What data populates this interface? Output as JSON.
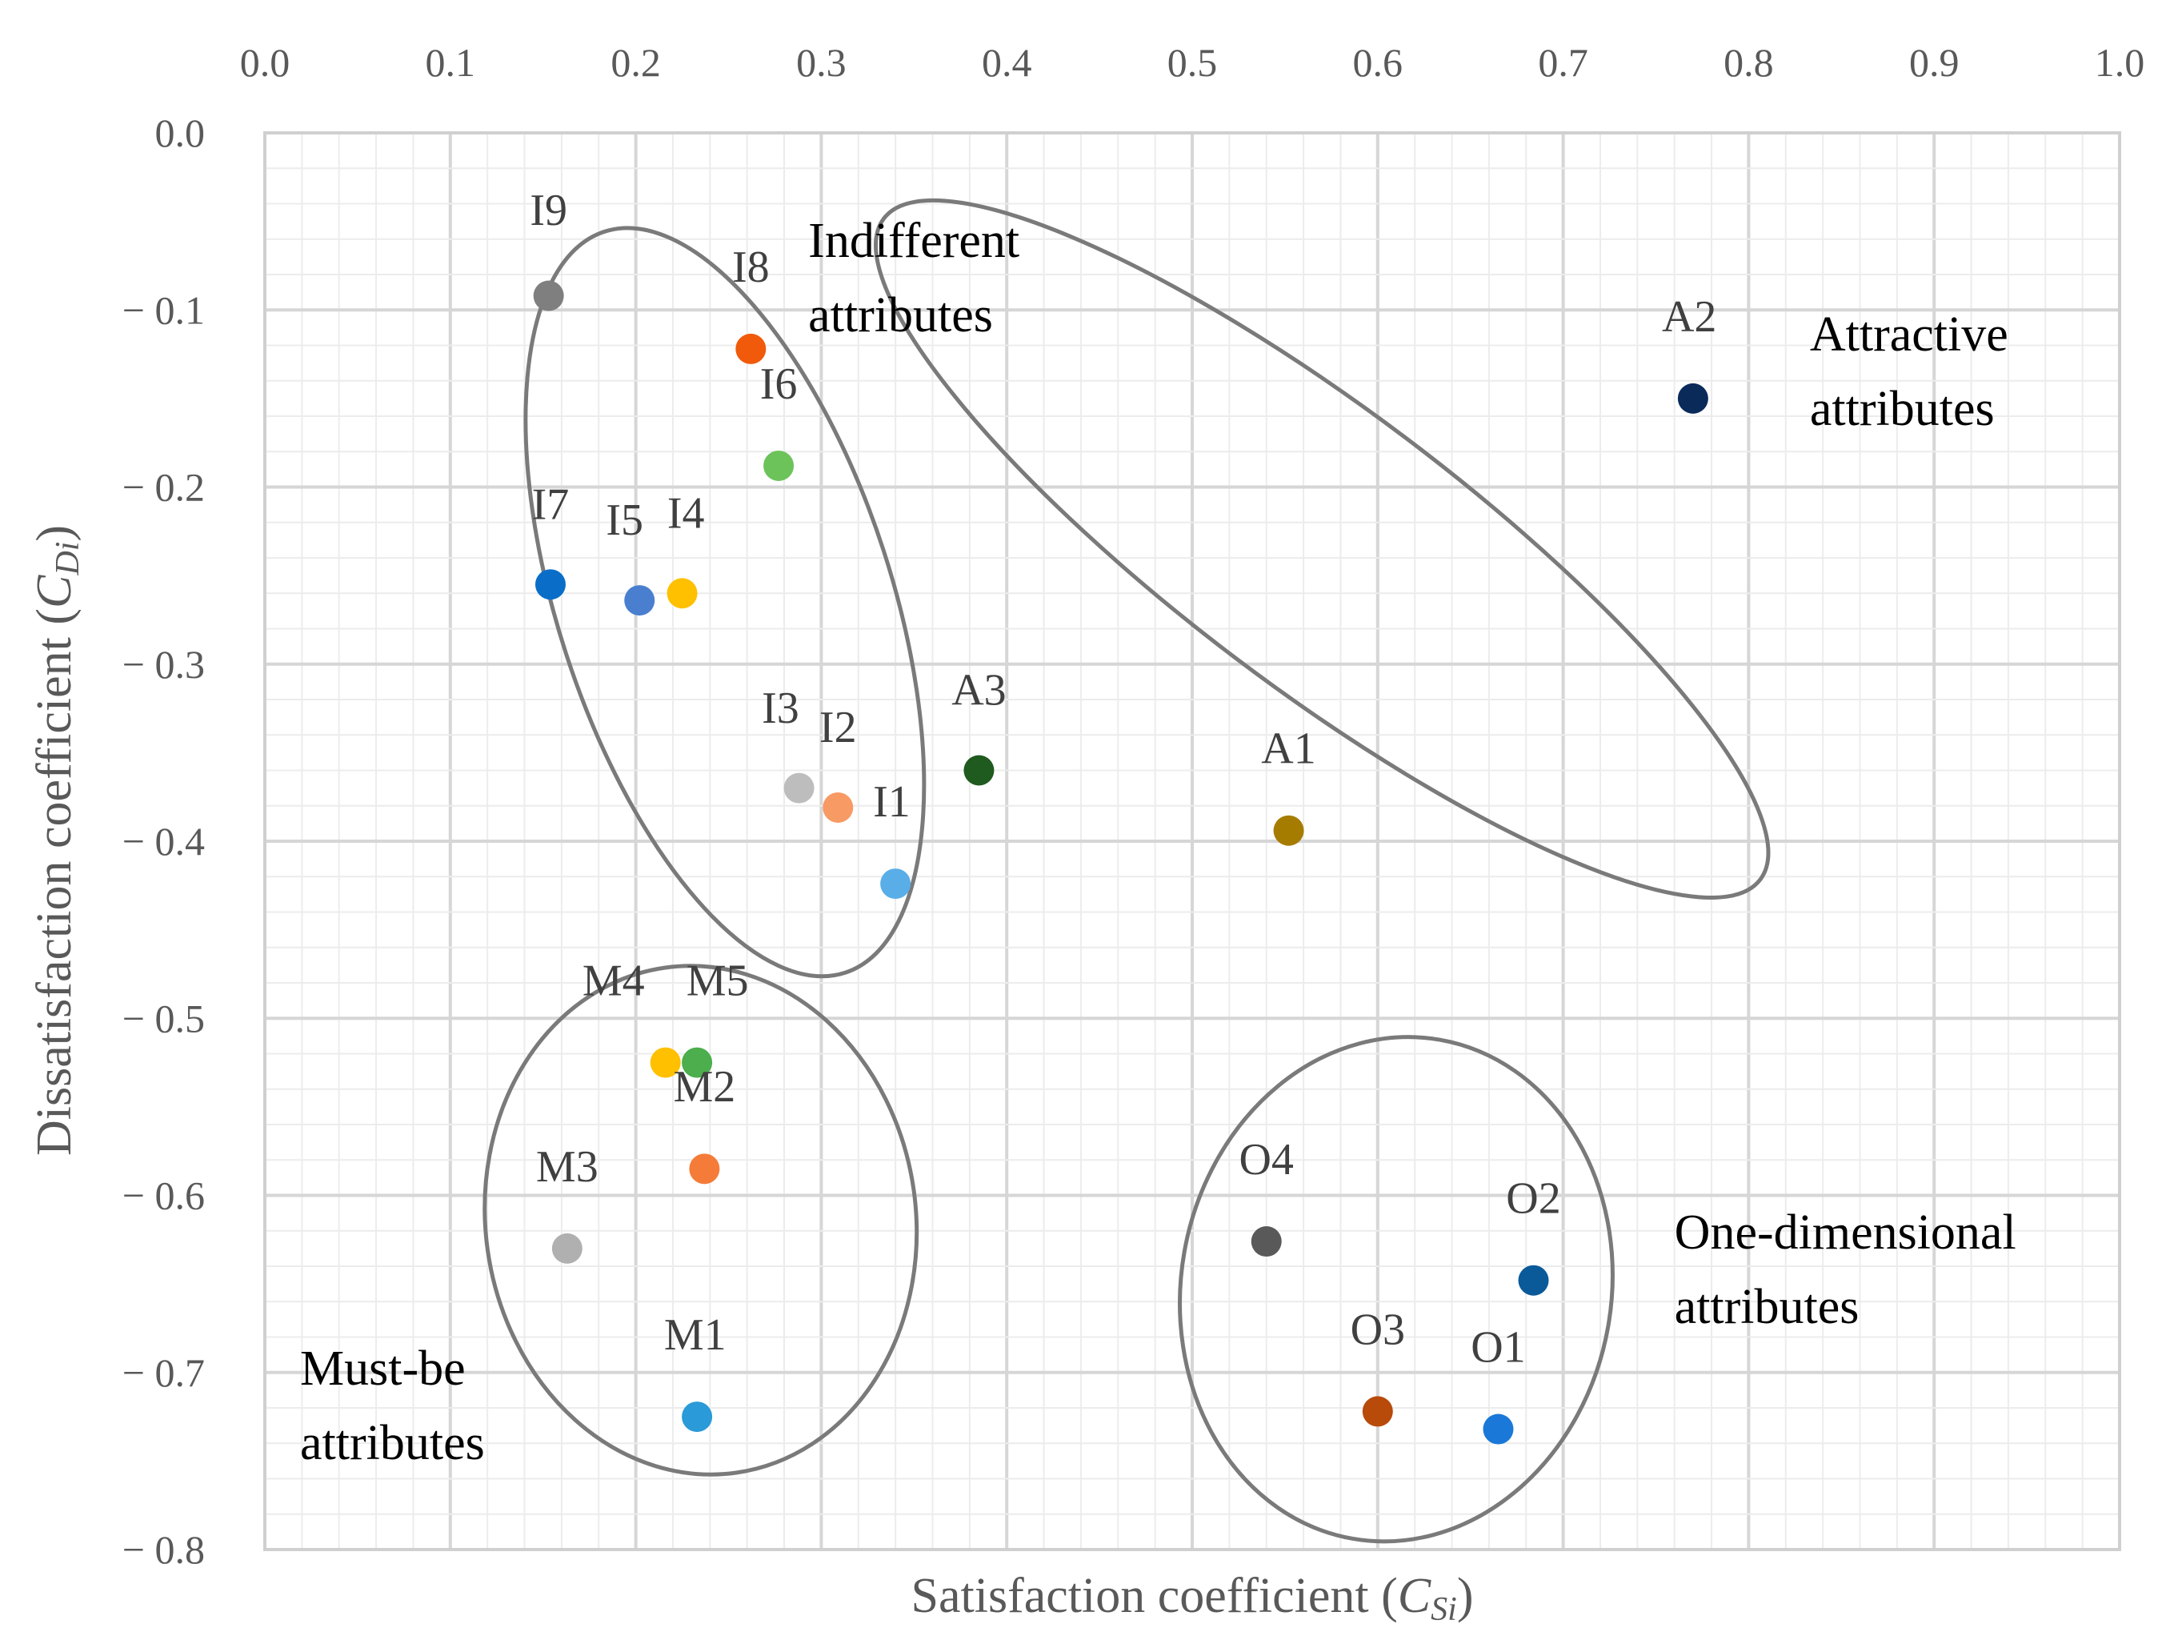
{
  "chart_data": {
    "type": "scatter",
    "title": "",
    "xlabel": "Satisfaction coefficient",
    "xlabel_symbol": "C",
    "xlabel_sub": "Si",
    "ylabel": "Dissatisfaction coefficient",
    "ylabel_symbol": "C",
    "ylabel_sub": "Di",
    "xlim": [
      0.0,
      1.0
    ],
    "ylim": [
      -0.8,
      0.0
    ],
    "x_axis_position": "top",
    "grid": true,
    "x_ticks": [
      "0.0",
      "0.1",
      "0.2",
      "0.3",
      "0.4",
      "0.5",
      "0.6",
      "0.7",
      "0.8",
      "0.9",
      "1.0"
    ],
    "y_ticks": [
      "0.0",
      "− 0.1",
      "− 0.2",
      "− 0.3",
      "− 0.4",
      "− 0.5",
      "− 0.6",
      "− 0.7",
      "− 0.8"
    ],
    "points": [
      {
        "label": "I9",
        "x": 0.153,
        "y": -0.092,
        "color": "#7f7f7f",
        "label_dx": 0.0,
        "label_dy": 0.04
      },
      {
        "label": "I8",
        "x": 0.262,
        "y": -0.122,
        "color": "#f05a0a",
        "label_dx": 0.0,
        "label_dy": 0.038
      },
      {
        "label": "I6",
        "x": 0.277,
        "y": -0.188,
        "color": "#6cc35a",
        "label_dx": 0.0,
        "label_dy": 0.038
      },
      {
        "label": "I7",
        "x": 0.154,
        "y": -0.255,
        "color": "#0a6ec8",
        "label_dx": 0.0,
        "label_dy": 0.037
      },
      {
        "label": "I5",
        "x": 0.202,
        "y": -0.264,
        "color": "#4a7fd0",
        "label_dx": -0.008,
        "label_dy": 0.037
      },
      {
        "label": "I4",
        "x": 0.225,
        "y": -0.26,
        "color": "#ffc000",
        "label_dx": 0.002,
        "label_dy": 0.037
      },
      {
        "label": "I3",
        "x": 0.288,
        "y": -0.37,
        "color": "#bdbdbd",
        "label_dx": -0.01,
        "label_dy": 0.037
      },
      {
        "label": "I2",
        "x": 0.309,
        "y": -0.381,
        "color": "#f79a64",
        "label_dx": 0.0,
        "label_dy": 0.037
      },
      {
        "label": "I1",
        "x": 0.34,
        "y": -0.424,
        "color": "#5aaee8",
        "label_dx": -0.002,
        "label_dy": 0.038
      },
      {
        "label": "A3",
        "x": 0.385,
        "y": -0.36,
        "color": "#1f5a1f",
        "label_dx": 0.0,
        "label_dy": 0.037
      },
      {
        "label": "A1",
        "x": 0.552,
        "y": -0.394,
        "color": "#a67c00",
        "label_dx": 0.0,
        "label_dy": 0.038
      },
      {
        "label": "A2",
        "x": 0.77,
        "y": -0.15,
        "color": "#0a2a5a",
        "label_dx": -0.002,
        "label_dy": 0.038
      },
      {
        "label": "M4",
        "x": 0.216,
        "y": -0.525,
        "color": "#ffc000",
        "label_dx": -0.028,
        "label_dy": 0.038
      },
      {
        "label": "M5",
        "x": 0.233,
        "y": -0.525,
        "color": "#4cae4c",
        "label_dx": 0.011,
        "label_dy": 0.038
      },
      {
        "label": "M2",
        "x": 0.237,
        "y": -0.585,
        "color": "#f57c38",
        "label_dx": 0.0,
        "label_dy": 0.038
      },
      {
        "label": "M3",
        "x": 0.163,
        "y": -0.63,
        "color": "#b0b0b0",
        "label_dx": 0.0,
        "label_dy": 0.038
      },
      {
        "label": "M1",
        "x": 0.233,
        "y": -0.725,
        "color": "#2a9ad8",
        "label_dx": -0.001,
        "label_dy": 0.038
      },
      {
        "label": "O4",
        "x": 0.54,
        "y": -0.626,
        "color": "#595959",
        "label_dx": 0.0,
        "label_dy": 0.038
      },
      {
        "label": "O2",
        "x": 0.684,
        "y": -0.648,
        "color": "#0a5a9a",
        "label_dx": 0.0,
        "label_dy": 0.038
      },
      {
        "label": "O3",
        "x": 0.6,
        "y": -0.722,
        "color": "#b84a0a",
        "label_dx": 0.0,
        "label_dy": 0.038
      },
      {
        "label": "O1",
        "x": 0.665,
        "y": -0.732,
        "color": "#1a78d8",
        "label_dx": 0.0,
        "label_dy": 0.038
      }
    ],
    "groups": [
      {
        "name": "Indifferent",
        "label_line1": "Indifferent",
        "label_line2": "attributes",
        "cx": 0.248,
        "cy": -0.265,
        "rx": 0.09,
        "ry": 0.22,
        "angle": 18,
        "label_x": 0.293,
        "label_y": -0.07
      },
      {
        "name": "Attractive",
        "label_line1": "Attractive",
        "label_line2": "attributes",
        "cx": 0.57,
        "cy": -0.235,
        "rx": 0.075,
        "ry": 0.31,
        "angle": 53,
        "label_x": 0.833,
        "label_y": -0.123
      },
      {
        "name": "Must-be",
        "label_line1": "Must-be",
        "label_line2": "attributes",
        "cx": 0.235,
        "cy": -0.614,
        "rx": 0.116,
        "ry": 0.144,
        "angle": 8,
        "label_x": 0.019,
        "label_y": -0.707
      },
      {
        "name": "One-dimensional",
        "label_line1": "One-dimensional",
        "label_line2": "attributes",
        "cx": 0.61,
        "cy": -0.653,
        "rx": 0.116,
        "ry": 0.143,
        "angle": -10,
        "label_x": 0.76,
        "label_y": -0.63
      }
    ]
  }
}
